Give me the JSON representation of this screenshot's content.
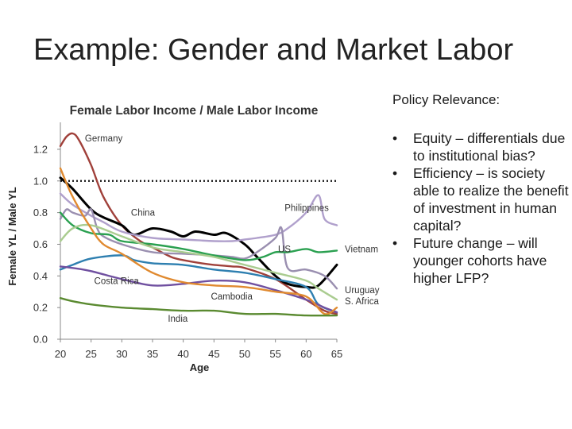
{
  "slide": {
    "title": "Example: Gender and Market Labor"
  },
  "policy": {
    "heading": "Policy Relevance:",
    "bullet_glyph": "•",
    "bullets": [
      "Equity – differentials due to institutional bias?",
      "Efficiency – is society able to realize the benefit of investment in human capital?",
      "Future change – will younger cohorts have higher LFP?"
    ]
  },
  "chart_data": {
    "type": "line",
    "title": "Female Labor Income / Male Labor Income",
    "xlabel": "Age",
    "ylabel": "Female YL / Male YL",
    "xlim": [
      20,
      65
    ],
    "ylim": [
      0,
      1.3
    ],
    "xticks": [
      20,
      25,
      30,
      35,
      40,
      45,
      50,
      55,
      60,
      65
    ],
    "yticks": [
      0,
      0.2,
      0.4,
      0.6,
      0.8,
      1.0,
      1.2
    ],
    "ytick_labels": [
      "0.0",
      "0.2",
      "0.4",
      "0.6",
      "0.8",
      "1.0",
      "1.2"
    ],
    "grid": false,
    "reference_line": {
      "y": 1.0,
      "style": "dotted"
    },
    "series": [
      {
        "name": "Germany",
        "color": "#a0403a",
        "x": [
          20,
          21,
          22,
          23,
          25,
          27,
          30,
          33,
          35,
          38,
          40,
          43,
          45,
          48,
          50,
          55,
          60,
          63,
          65
        ],
        "y": [
          1.22,
          1.28,
          1.3,
          1.26,
          1.1,
          0.9,
          0.72,
          0.62,
          0.58,
          0.52,
          0.5,
          0.48,
          0.47,
          0.46,
          0.45,
          0.38,
          0.25,
          0.18,
          0.16
        ]
      },
      {
        "name": "China",
        "color": "#000000",
        "x": [
          20,
          22,
          25,
          27,
          30,
          32,
          35,
          38,
          40,
          42,
          45,
          47,
          50,
          52,
          55,
          57,
          60,
          62,
          65
        ],
        "y": [
          1.02,
          0.95,
          0.82,
          0.77,
          0.72,
          0.66,
          0.7,
          0.68,
          0.65,
          0.68,
          0.66,
          0.67,
          0.6,
          0.52,
          0.4,
          0.35,
          0.33,
          0.34,
          0.47
        ]
      },
      {
        "name": "Philippines",
        "color": "#b0a0cc",
        "x": [
          20,
          22,
          25,
          27,
          30,
          35,
          40,
          45,
          48,
          50,
          52,
          55,
          57,
          60,
          62,
          63,
          65
        ],
        "y": [
          0.92,
          0.85,
          0.78,
          0.74,
          0.68,
          0.64,
          0.63,
          0.62,
          0.62,
          0.63,
          0.64,
          0.66,
          0.7,
          0.8,
          0.91,
          0.76,
          0.72
        ]
      },
      {
        "name": "US",
        "color": "#9a8fb0",
        "x": [
          20,
          21,
          22,
          24,
          25,
          26,
          27,
          30,
          35,
          40,
          45,
          48,
          50,
          52,
          55,
          56,
          57,
          60,
          63,
          65
        ],
        "y": [
          0.76,
          0.82,
          0.8,
          0.78,
          0.82,
          0.7,
          0.65,
          0.6,
          0.55,
          0.54,
          0.53,
          0.52,
          0.51,
          0.55,
          0.64,
          0.7,
          0.45,
          0.44,
          0.4,
          0.32
        ]
      },
      {
        "name": "Vietnam",
        "color": "#2aa050",
        "x": [
          20,
          22,
          25,
          28,
          30,
          35,
          40,
          45,
          50,
          53,
          55,
          57,
          60,
          62,
          65
        ],
        "y": [
          0.8,
          0.72,
          0.67,
          0.66,
          0.62,
          0.6,
          0.57,
          0.53,
          0.5,
          0.52,
          0.55,
          0.55,
          0.57,
          0.55,
          0.56
        ]
      },
      {
        "name": "Costa Rica",
        "color": "#2e7fb0",
        "x": [
          20,
          22,
          25,
          30,
          32,
          35,
          40,
          45,
          50,
          55,
          60,
          62,
          65
        ],
        "y": [
          0.44,
          0.47,
          0.51,
          0.53,
          0.5,
          0.48,
          0.47,
          0.44,
          0.42,
          0.38,
          0.33,
          0.22,
          0.17
        ]
      },
      {
        "name": "Uruguay",
        "color": "#aacc90",
        "x": [
          20,
          22,
          25,
          30,
          35,
          40,
          45,
          50,
          55,
          60,
          62,
          65
        ],
        "y": [
          0.62,
          0.7,
          0.72,
          0.65,
          0.58,
          0.55,
          0.52,
          0.47,
          0.42,
          0.37,
          0.32,
          0.25
        ]
      },
      {
        "name": "S. Africa",
        "color": "#7050a0",
        "x": [
          20,
          22,
          25,
          30,
          35,
          40,
          45,
          50,
          55,
          60,
          63,
          65
        ],
        "y": [
          0.46,
          0.45,
          0.43,
          0.38,
          0.34,
          0.35,
          0.37,
          0.36,
          0.31,
          0.25,
          0.2,
          0.17
        ]
      },
      {
        "name": "Cambodia",
        "color": "#e08a30",
        "x": [
          20,
          22,
          25,
          27,
          30,
          35,
          40,
          45,
          50,
          55,
          60,
          63,
          65
        ],
        "y": [
          1.08,
          0.9,
          0.7,
          0.6,
          0.54,
          0.42,
          0.36,
          0.34,
          0.33,
          0.3,
          0.27,
          0.16,
          0.2
        ]
      },
      {
        "name": "India",
        "color": "#5a8a30",
        "x": [
          20,
          22,
          25,
          30,
          35,
          40,
          45,
          50,
          55,
          60,
          65
        ],
        "y": [
          0.26,
          0.24,
          0.22,
          0.2,
          0.19,
          0.18,
          0.18,
          0.16,
          0.16,
          0.15,
          0.15
        ]
      }
    ],
    "annotations": [
      {
        "text": "Germany",
        "x": 24,
        "y": 1.25,
        "anchor": "start"
      },
      {
        "text": "China",
        "x": 31.5,
        "y": 0.78,
        "anchor": "start"
      },
      {
        "text": "Philippines",
        "x": 56.5,
        "y": 0.81,
        "anchor": "start"
      },
      {
        "text": "US",
        "x": 57.5,
        "y": 0.55,
        "anchor": "end"
      },
      {
        "text": "Vietnam",
        "x": 66.3,
        "y": 0.55,
        "anchor": "start"
      },
      {
        "text": "Costa Rica",
        "x": 25.5,
        "y": 0.35,
        "anchor": "start"
      },
      {
        "text": "Cambodia",
        "x": 44.5,
        "y": 0.25,
        "anchor": "start"
      },
      {
        "text": "Uruguay",
        "x": 66.3,
        "y": 0.29,
        "anchor": "start"
      },
      {
        "text": "S. Africa",
        "x": 66.3,
        "y": 0.22,
        "anchor": "start"
      },
      {
        "text": "India",
        "x": 37.5,
        "y": 0.11,
        "anchor": "start"
      }
    ]
  }
}
